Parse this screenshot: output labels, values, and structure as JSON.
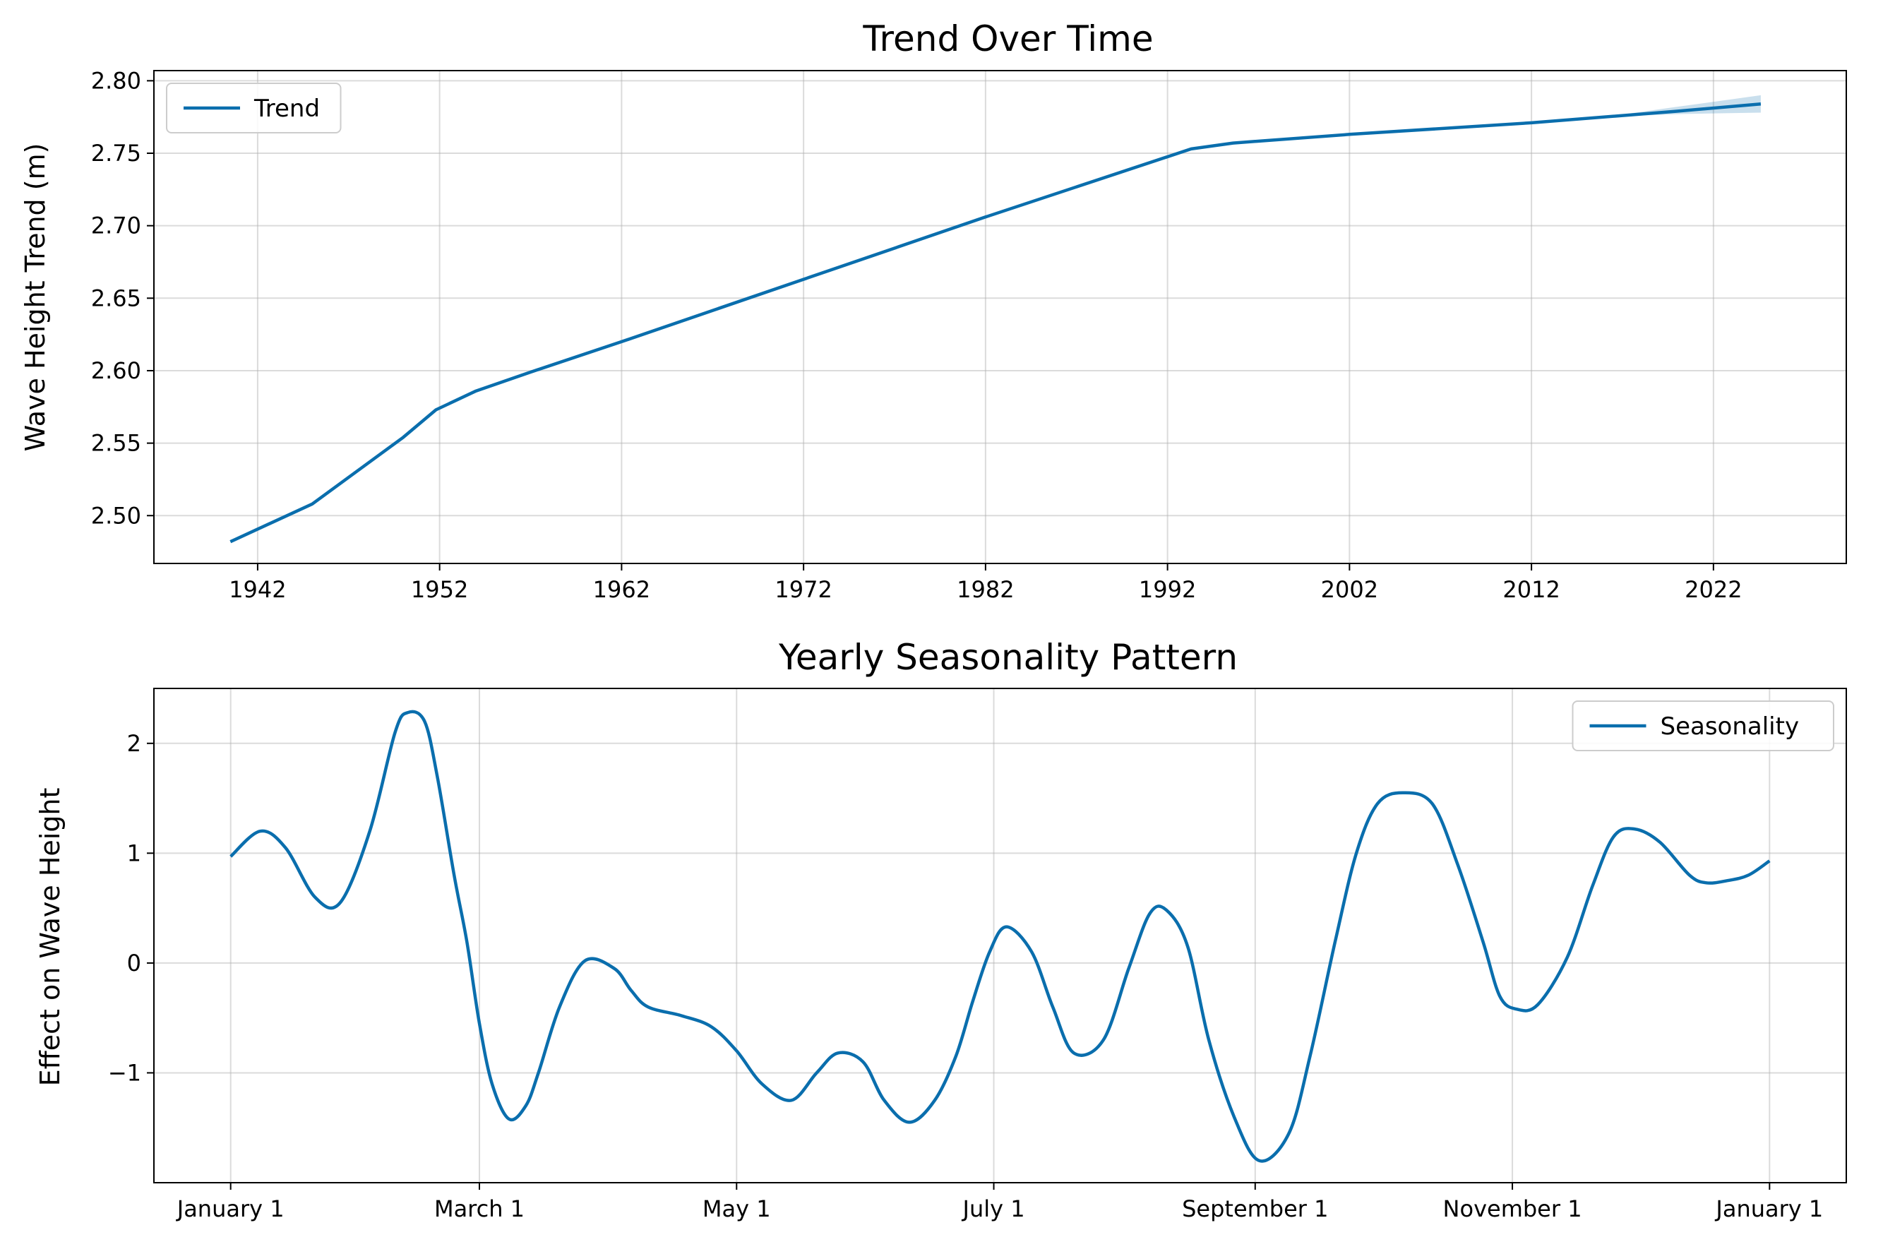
{
  "chart_data": [
    {
      "type": "line",
      "title": "Trend Over Time",
      "xlabel": "",
      "ylabel": "Wave Height Trend (m)",
      "xlim": [
        1936.3,
        2029.3
      ],
      "ylim": [
        2.467,
        2.807
      ],
      "xticks": [
        1942,
        1952,
        1962,
        1972,
        1982,
        1992,
        2002,
        2012,
        2022
      ],
      "yticks": [
        2.5,
        2.55,
        2.6,
        2.65,
        2.7,
        2.75,
        2.8
      ],
      "ytick_labels": [
        "2.50",
        "2.55",
        "2.60",
        "2.65",
        "2.70",
        "2.75",
        "2.80"
      ],
      "grid": true,
      "legend_position": "upper-left",
      "series": [
        {
          "name": "Trend",
          "color": "#0a6ead",
          "x": [
            1940.5,
            1945,
            1950,
            1951.8,
            1954,
            1957,
            1962,
            1972,
            1982,
            1993.3,
            1995.6,
            2002,
            2012,
            2020,
            2024.6
          ],
          "y": [
            2.482,
            2.508,
            2.554,
            2.573,
            2.586,
            2.599,
            2.62,
            2.663,
            2.706,
            2.753,
            2.757,
            2.763,
            2.771,
            2.779,
            2.784
          ]
        }
      ],
      "uncertainty_band": {
        "color": "#0a6ead",
        "x": [
          2016,
          2020,
          2024.6
        ],
        "lower": [
          2.775,
          2.777,
          2.778
        ],
        "upper": [
          2.775,
          2.782,
          2.79
        ]
      }
    },
    {
      "type": "line",
      "title": "Yearly Seasonality Pattern",
      "xlabel": "",
      "ylabel": "Effect on Wave Height",
      "x_units": "day of year",
      "xlim": [
        -18.2,
        383.2
      ],
      "ylim": [
        -2.0,
        2.5
      ],
      "xticks": [
        0,
        59,
        120,
        181,
        243,
        304,
        365
      ],
      "xtick_labels": [
        "January 1",
        "March 1",
        "May 1",
        "July 1",
        "September 1",
        "November 1",
        "January 1"
      ],
      "yticks": [
        -1,
        0,
        1,
        2
      ],
      "ytick_labels": [
        "−1",
        "0",
        "1",
        "2"
      ],
      "grid": true,
      "legend_position": "upper-right",
      "series": [
        {
          "name": "Seasonality",
          "color": "#0a6ead",
          "x": [
            0,
            7,
            13,
            20,
            26,
            33,
            39,
            42,
            46,
            49,
            53,
            56,
            59,
            62,
            66,
            70,
            73,
            78,
            84,
            91,
            95,
            99,
            107,
            114,
            120,
            126,
            133,
            139,
            144,
            150,
            155,
            161,
            167,
            172,
            176,
            180,
            184,
            190,
            195,
            200,
            207,
            213,
            218,
            222,
            227,
            232,
            238,
            244,
            251,
            256,
            262,
            267,
            272,
            278,
            285,
            291,
            297,
            301,
            305,
            310,
            317,
            323,
            328,
            333,
            339,
            346,
            350,
            355,
            360,
            365
          ],
          "y": [
            0.97,
            1.2,
            1.05,
            0.6,
            0.55,
            1.2,
            2.1,
            2.28,
            2.2,
            1.7,
            0.8,
            0.2,
            -0.55,
            -1.1,
            -1.42,
            -1.3,
            -1.0,
            -0.4,
            0.02,
            -0.05,
            -0.25,
            -0.4,
            -0.48,
            -0.58,
            -0.8,
            -1.1,
            -1.25,
            -1.0,
            -0.82,
            -0.9,
            -1.25,
            -1.45,
            -1.25,
            -0.85,
            -0.35,
            0.1,
            0.33,
            0.1,
            -0.4,
            -0.82,
            -0.7,
            -0.05,
            0.45,
            0.48,
            0.15,
            -0.7,
            -1.4,
            -1.8,
            -1.55,
            -0.85,
            0.2,
            1.0,
            1.45,
            1.55,
            1.45,
            0.9,
            0.2,
            -0.3,
            -0.42,
            -0.38,
            0.05,
            0.7,
            1.15,
            1.22,
            1.1,
            0.8,
            0.73,
            0.75,
            0.8,
            0.93
          ]
        }
      ]
    }
  ]
}
